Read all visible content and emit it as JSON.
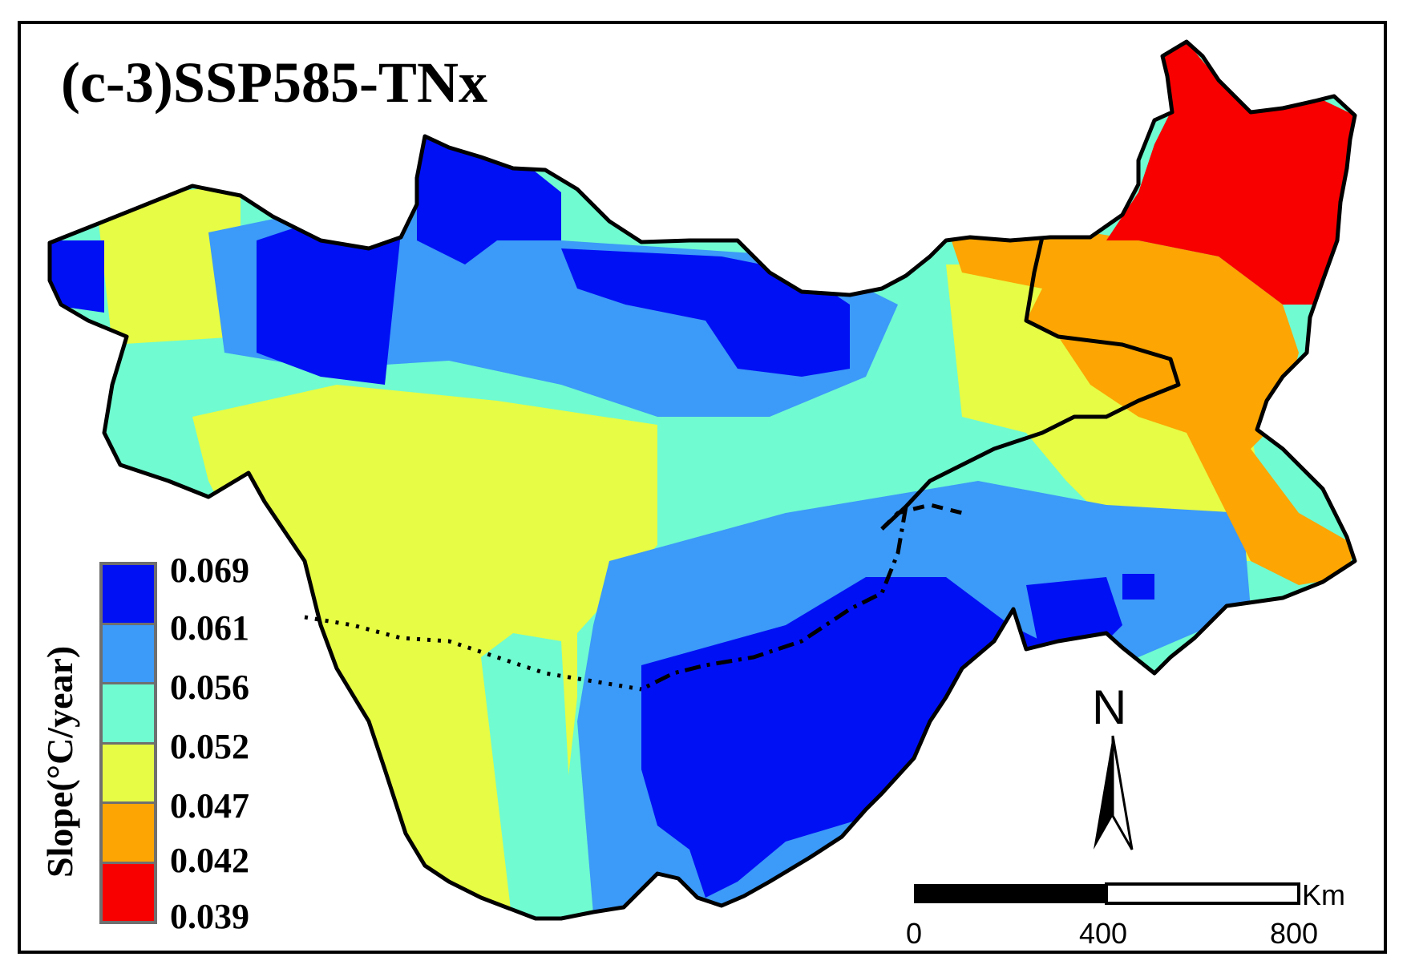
{
  "title": "(c-3)SSP585-TNx",
  "legend": {
    "title": "Slope(°C/year)",
    "items": [
      {
        "label": "0.069",
        "color": "#0010f5"
      },
      {
        "label": "0.061",
        "color": "#3c9af8"
      },
      {
        "label": "0.056",
        "color": "#70fbd0"
      },
      {
        "label": "0.052",
        "color": "#e6fc45"
      },
      {
        "label": "0.047",
        "color": "#fca503"
      },
      {
        "label": "0.042",
        "color": "#f80000"
      },
      {
        "label": "0.039",
        "color": ""
      }
    ]
  },
  "north_arrow": {
    "label": "N"
  },
  "scale_bar": {
    "unit": "Km",
    "ticks": [
      "0",
      "400",
      "800"
    ]
  }
}
